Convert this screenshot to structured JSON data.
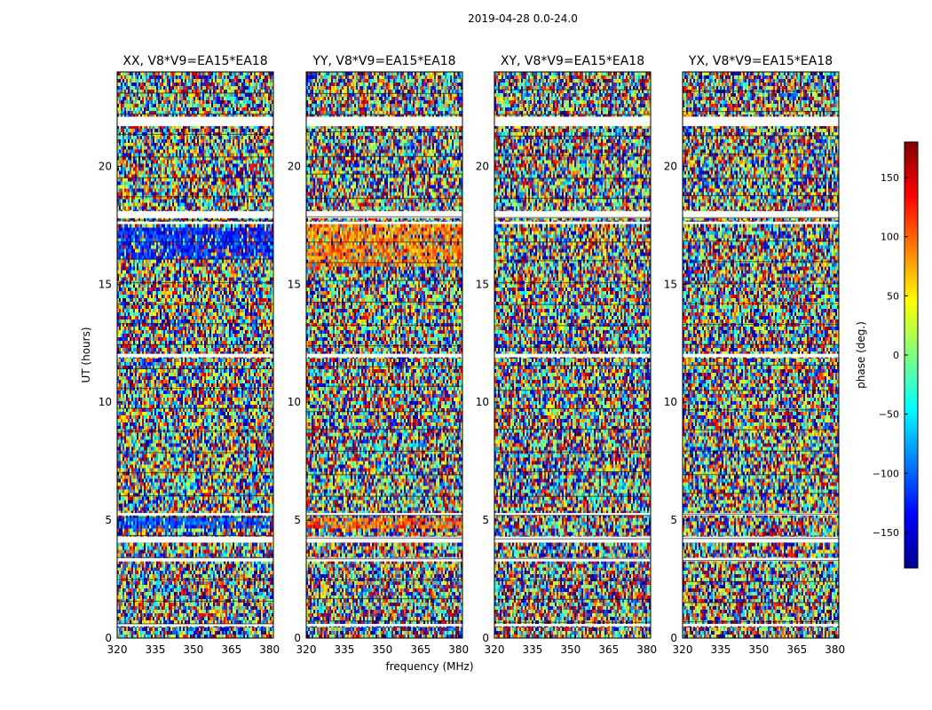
{
  "figure": {
    "suptitle": "2019-04-28 0.0-24.0"
  },
  "chart_data": [
    {
      "type": "heatmap",
      "title": "XX, V8*V9=EA15*EA18",
      "xlabel": "",
      "ylabel": "UT (hours)",
      "xlim": [
        320,
        381.5
      ],
      "ylim": [
        0,
        24
      ],
      "xticks": [
        "320",
        "335",
        "350",
        "365",
        "380"
      ],
      "yticks": [
        "0",
        "5",
        "10",
        "15",
        "20"
      ],
      "value": "phase (deg.)",
      "features": [
        {
          "ut": [
            16.0,
            17.4
          ],
          "phase_deg": -120
        },
        {
          "ut": [
            4.6,
            5.1
          ],
          "phase_deg": -110
        }
      ]
    },
    {
      "type": "heatmap",
      "title": "YY, V8*V9=EA15*EA18",
      "xlabel": "frequency (MHz)",
      "ylabel": "",
      "xlim": [
        320,
        381.5
      ],
      "ylim": [
        0,
        24
      ],
      "xticks": [
        "320",
        "335",
        "350",
        "365",
        "380"
      ],
      "yticks": [
        "0",
        "5",
        "10",
        "15",
        "20"
      ],
      "value": "phase (deg.)",
      "features": [
        {
          "ut": [
            15.8,
            17.5
          ],
          "phase_deg": 90
        },
        {
          "ut": [
            4.7,
            5.1
          ],
          "phase_deg": 100
        }
      ]
    },
    {
      "type": "heatmap",
      "title": "XY, V8*V9=EA15*EA18",
      "xlabel": "",
      "ylabel": "",
      "xlim": [
        320,
        381.5
      ],
      "ylim": [
        0,
        24
      ],
      "xticks": [
        "320",
        "335",
        "350",
        "365",
        "380"
      ],
      "yticks": [
        "0",
        "5",
        "10",
        "15",
        "20"
      ],
      "value": "phase (deg.)",
      "features": []
    },
    {
      "type": "heatmap",
      "title": "YX, V8*V9=EA15*EA18",
      "xlabel": "",
      "ylabel": "",
      "xlim": [
        320,
        381.5
      ],
      "ylim": [
        0,
        24
      ],
      "xticks": [
        "320",
        "335",
        "350",
        "365",
        "380"
      ],
      "yticks": [
        "0",
        "5",
        "10",
        "15",
        "20"
      ],
      "value": "phase (deg.)",
      "features": []
    }
  ],
  "colorbar": {
    "label": "phase (deg.)",
    "range": [
      -180,
      180
    ],
    "ticks": [
      "150",
      "100",
      "50",
      "0",
      "−50",
      "−100",
      "−150"
    ],
    "tick_values": [
      150,
      100,
      50,
      0,
      -50,
      -100,
      -150
    ],
    "colormap": "jet",
    "flagged_bands_ut": [
      [
        21.7,
        22.1
      ],
      [
        17.8,
        18.1
      ],
      [
        17.55,
        17.65
      ],
      [
        11.9,
        12.05
      ],
      [
        5.2,
        5.3
      ],
      [
        4.05,
        4.3
      ],
      [
        3.25,
        3.4
      ],
      [
        0.5,
        0.6
      ]
    ]
  }
}
